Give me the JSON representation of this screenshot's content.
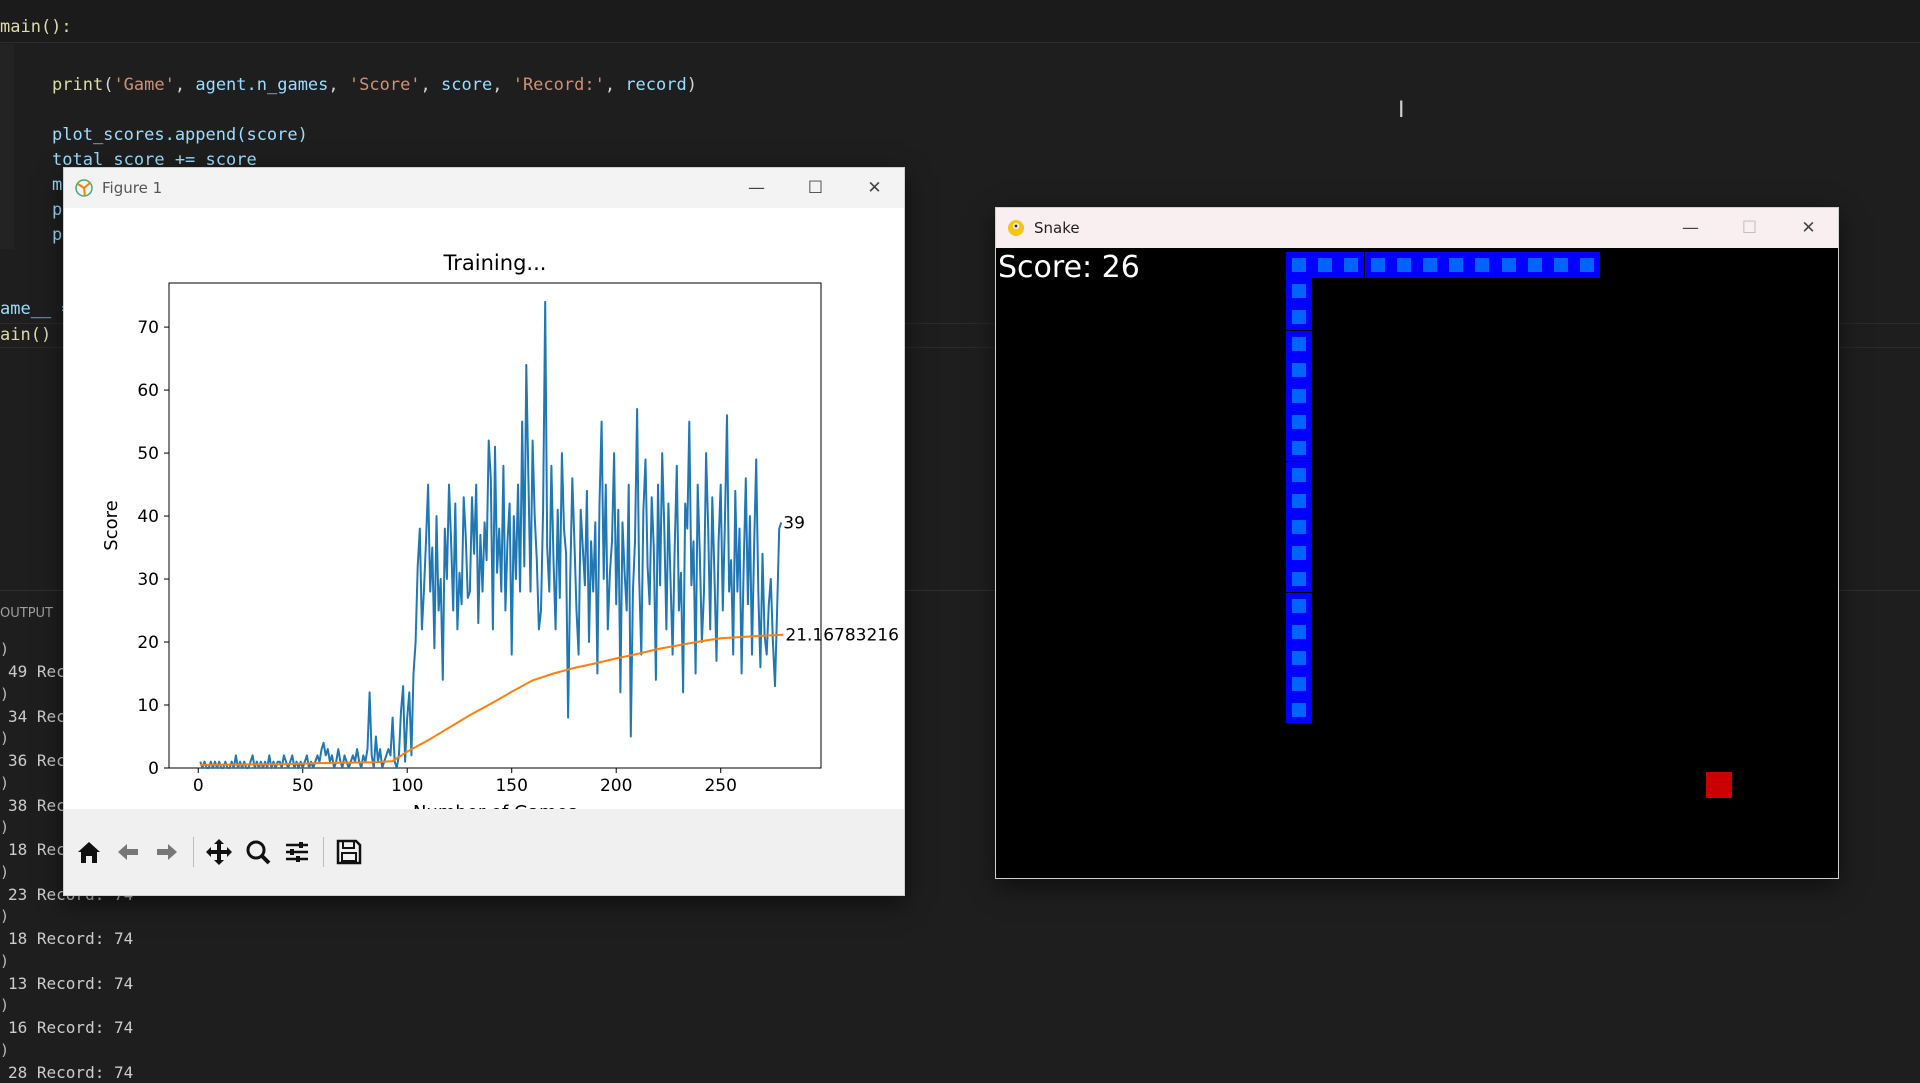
{
  "editor": {
    "code": {
      "def_main": "main():",
      "print_line": "print('Game', agent.n_games, 'Score', score, 'Record:', record)",
      "append_line": "plot_scores.append(score)",
      "total_line": "total_score += score",
      "m_frag": "m",
      "p_frag1": "p",
      "p_frag2": "p",
      "name_line": "ame__ =",
      "main_call": "ain()"
    },
    "panel_title": "OUTPUT",
    "terminal_lines": [
      "49 Rec",
      "34 Rec",
      "36 Rec",
      "38 Rec",
      "18 Rec",
      "23 Record: 74",
      "18 Record: 74",
      "13 Record: 74",
      "16 Record: 74",
      "28 Record: 74"
    ]
  },
  "figure_window": {
    "title": "Figure 1",
    "toolbar": [
      "home-icon",
      "back-icon",
      "forward-icon",
      "pan-icon",
      "zoom-icon",
      "configure-icon",
      "save-icon"
    ]
  },
  "snake_window": {
    "title": "Snake",
    "score_text": "Score: 26",
    "colors": {
      "snake_outer": "#0000ff",
      "snake_inner": "#0064ff",
      "food": "#c80000",
      "background": "#000000"
    }
  },
  "chart_data": {
    "type": "line",
    "title": "Training...",
    "xlabel": "Number of Games",
    "ylabel": "Score",
    "xlim": [
      -14,
      298
    ],
    "ylim": [
      0,
      77
    ],
    "xticks": [
      0,
      50,
      100,
      150,
      200,
      250
    ],
    "yticks": [
      0,
      10,
      20,
      30,
      40,
      50,
      60,
      70
    ],
    "series": [
      {
        "color": "#1f77b4",
        "x_start": 1,
        "values": [
          1,
          0,
          1,
          0,
          0,
          1,
          0,
          1,
          0,
          1,
          0,
          0,
          1,
          0,
          0,
          1,
          0,
          2,
          0,
          1,
          0,
          1,
          0,
          0,
          1,
          2,
          0,
          1,
          0,
          1,
          0,
          1,
          0,
          2,
          0,
          1,
          0,
          1,
          1,
          0,
          2,
          1,
          0,
          1,
          2,
          0,
          1,
          0,
          1,
          0,
          1,
          2,
          0,
          1,
          0,
          1,
          2,
          1,
          3,
          4,
          2,
          3,
          1,
          2,
          0,
          1,
          3,
          1,
          0,
          2,
          1,
          0,
          1,
          2,
          1,
          3,
          1,
          0,
          2,
          1,
          3,
          12,
          2,
          0,
          5,
          1,
          3,
          0,
          1,
          2,
          3,
          2,
          8,
          1,
          0,
          2,
          9,
          13,
          1,
          8,
          12,
          2,
          15,
          20,
          32,
          38,
          22,
          28,
          36,
          45,
          28,
          35,
          19,
          40,
          25,
          30,
          14,
          38,
          30,
          45,
          36,
          25,
          42,
          22,
          31,
          26,
          43,
          37,
          27,
          28,
          43,
          34,
          45,
          23,
          37,
          28,
          39,
          33,
          52,
          46,
          22,
          51,
          31,
          38,
          28,
          48,
          25,
          36,
          42,
          18,
          40,
          30,
          45,
          28,
          55,
          32,
          64,
          46,
          28,
          52,
          40,
          33,
          22,
          25,
          41,
          74,
          35,
          28,
          48,
          33,
          22,
          41,
          27,
          50,
          38,
          34,
          8,
          30,
          46,
          36,
          25,
          18,
          41,
          35,
          29,
          44,
          20,
          36,
          28,
          39,
          15,
          42,
          55,
          30,
          45,
          22,
          31,
          36,
          50,
          26,
          41,
          12,
          39,
          31,
          25,
          45,
          5,
          28,
          36,
          57,
          30,
          18,
          41,
          49,
          32,
          26,
          43,
          35,
          14,
          45,
          29,
          50,
          38,
          22,
          42,
          30,
          18,
          35,
          48,
          25,
          31,
          12,
          42,
          38,
          55,
          29,
          36,
          15,
          45,
          34,
          20,
          28,
          50,
          38,
          22,
          43,
          31,
          17,
          36,
          45,
          25,
          39,
          56,
          28,
          33,
          18,
          44,
          28,
          38,
          15,
          32,
          46,
          26,
          40,
          18,
          35,
          49,
          28,
          16,
          34,
          21,
          18,
          26,
          30,
          20,
          13,
          25,
          38,
          39
        ]
      },
      {
        "color": "#ff7f0e",
        "points": [
          [
            1,
            0.5
          ],
          [
            40,
            0.6
          ],
          [
            60,
            0.8
          ],
          [
            85,
            0.9
          ],
          [
            93,
            1.1
          ],
          [
            100,
            2.6
          ],
          [
            110,
            4.4
          ],
          [
            120,
            6.4
          ],
          [
            130,
            8.4
          ],
          [
            140,
            10.2
          ],
          [
            150,
            12.1
          ],
          [
            160,
            13.9
          ],
          [
            170,
            15.0
          ],
          [
            180,
            15.9
          ],
          [
            190,
            16.6
          ],
          [
            200,
            17.4
          ],
          [
            210,
            18.1
          ],
          [
            220,
            18.9
          ],
          [
            230,
            19.5
          ],
          [
            240,
            20.1
          ],
          [
            250,
            20.6
          ],
          [
            260,
            20.8
          ],
          [
            270,
            21.0
          ],
          [
            280,
            21.17
          ]
        ]
      }
    ],
    "annotations": [
      "39",
      "21.16783216"
    ]
  }
}
